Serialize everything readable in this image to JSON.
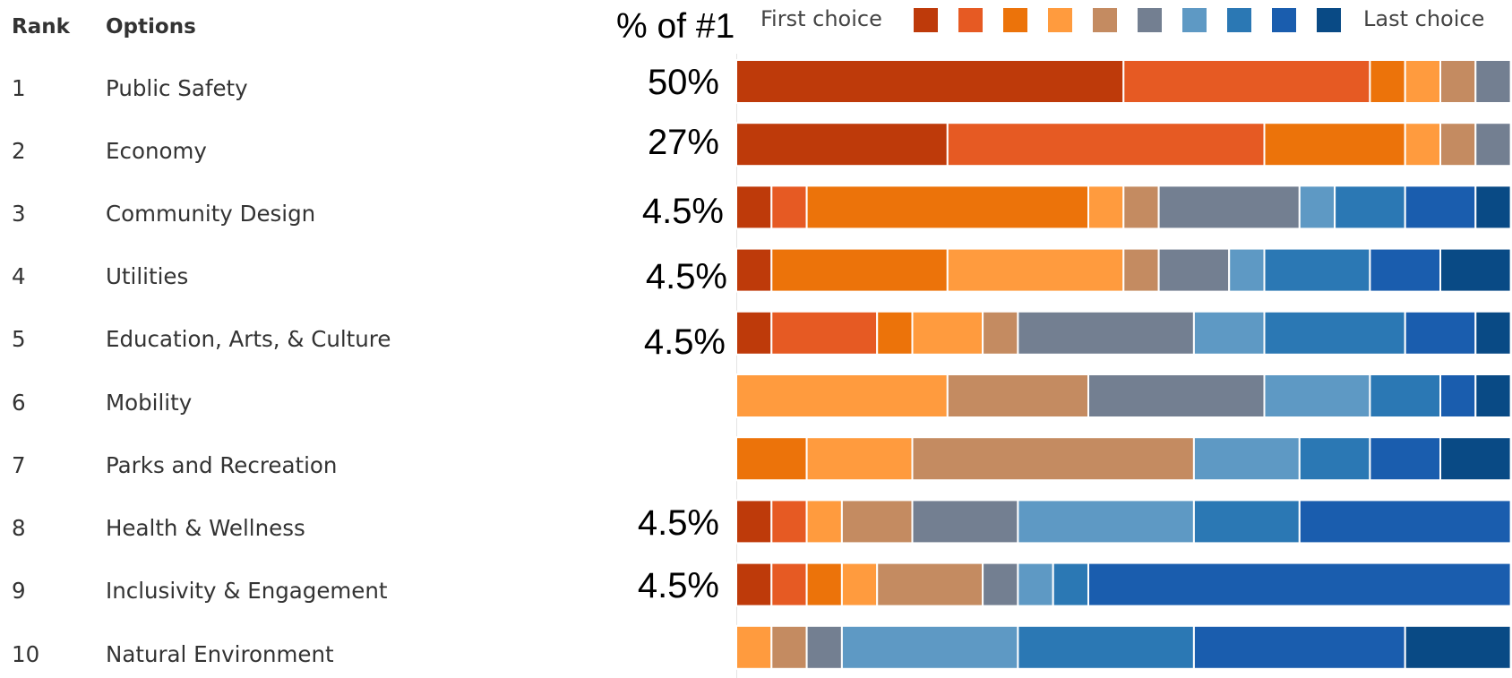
{
  "headers": {
    "rank": "Rank",
    "options": "Options",
    "pct_of_first": "% of #1"
  },
  "legend": {
    "first_label": "First choice",
    "last_label": "Last choice",
    "colors": [
      "#BE3A0A",
      "#E65A23",
      "#EC730A",
      "#FF9B3E",
      "#C48B61",
      "#737F91",
      "#5E99C4",
      "#2B78B4",
      "#1A5DAE",
      "#094A85"
    ]
  },
  "rows": [
    {
      "rank": "1",
      "option": "Public Safety",
      "pct": "50%"
    },
    {
      "rank": "2",
      "option": "Economy",
      "pct": "27%"
    },
    {
      "rank": "3",
      "option": "Community Design",
      "pct": "4.5%"
    },
    {
      "rank": "4",
      "option": "Utilities",
      "pct": "4.5%"
    },
    {
      "rank": "5",
      "option": "Education, Arts, & Culture",
      "pct": "4.5%"
    },
    {
      "rank": "6",
      "option": "Mobility",
      "pct": ""
    },
    {
      "rank": "7",
      "option": "Parks and Recreation",
      "pct": ""
    },
    {
      "rank": "8",
      "option": "Health & Wellness",
      "pct": "4.5%"
    },
    {
      "rank": "9",
      "option": "Inclusivity & Engagement",
      "pct": "4.5%"
    },
    {
      "rank": "10",
      "option": "Natural Environment",
      "pct": ""
    }
  ],
  "chart_data": {
    "type": "bar",
    "orientation": "horizontal",
    "stacked": true,
    "categories": [
      "Public Safety",
      "Economy",
      "Community Design",
      "Utilities",
      "Education, Arts, & Culture",
      "Mobility",
      "Parks and Recreation",
      "Health & Wellness",
      "Inclusivity & Engagement",
      "Natural Environment"
    ],
    "rank_levels": [
      "First choice",
      "2",
      "3",
      "4",
      "5",
      "6",
      "7",
      "8",
      "9",
      "Last choice"
    ],
    "segments": [
      [
        11,
        7,
        1,
        1,
        1,
        1,
        0,
        0,
        0,
        0
      ],
      [
        6,
        9,
        4,
        1,
        1,
        1,
        0,
        0,
        0,
        0
      ],
      [
        1,
        1,
        8,
        1,
        1,
        4,
        1,
        2,
        2,
        1
      ],
      [
        1,
        0,
        5,
        5,
        1,
        2,
        1,
        3,
        2,
        2
      ],
      [
        1,
        3,
        1,
        2,
        1,
        5,
        2,
        4,
        2,
        1
      ],
      [
        0,
        0,
        0,
        6,
        4,
        5,
        3,
        2,
        1,
        1
      ],
      [
        0,
        0,
        2,
        3,
        8,
        0,
        3,
        2,
        2,
        2
      ],
      [
        1,
        1,
        0,
        1,
        2,
        3,
        5,
        3,
        6,
        0
      ],
      [
        1,
        1,
        1,
        1,
        3,
        1,
        1,
        1,
        12,
        0
      ],
      [
        0,
        0,
        0,
        1,
        1,
        1,
        5,
        5,
        6,
        3
      ]
    ]
  }
}
